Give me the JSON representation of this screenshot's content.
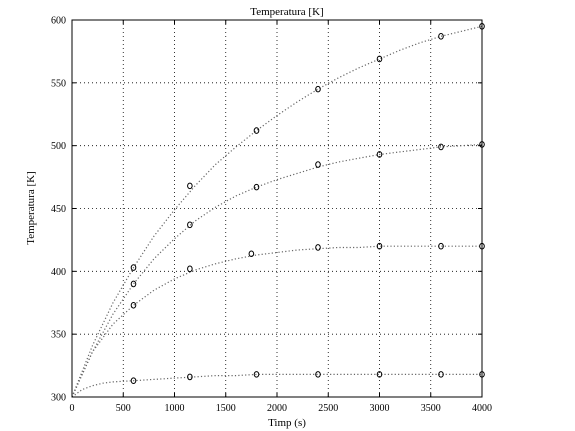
{
  "chart_data": {
    "type": "scatter",
    "title": "Temperatura [K]",
    "xlabel": "Timp (s)",
    "ylabel": "Temperatura [K]",
    "xlim": [
      0,
      4000
    ],
    "ylim": [
      300,
      600
    ],
    "xticks": [
      0,
      500,
      1000,
      1500,
      2000,
      2500,
      3000,
      3500,
      4000
    ],
    "yticks": [
      300,
      350,
      400,
      450,
      500,
      550,
      600
    ],
    "xtick_labels": [
      "0",
      "500",
      "1000",
      "1500",
      "2000",
      "2500",
      "3000",
      "3500",
      "4000"
    ],
    "ytick_labels": [
      "300",
      "350",
      "400",
      "450",
      "500",
      "550",
      "600"
    ],
    "grid": true,
    "series": [
      {
        "marker": "circle",
        "x": [
          600,
          1150,
          1800,
          2400,
          3000,
          3600,
          4000
        ],
        "y": [
          403,
          468,
          512,
          545,
          569,
          587,
          595
        ],
        "fit_x": [
          0,
          200,
          400,
          600,
          800,
          1000,
          1200,
          1400,
          1600,
          1800,
          2000,
          2200,
          2400,
          2600,
          2800,
          3000,
          3200,
          3400,
          3600,
          3800,
          4000
        ],
        "fit_y": [
          300,
          341,
          375,
          403,
          428,
          449,
          468,
          485,
          499,
          512,
          524,
          535,
          545,
          554,
          562,
          569,
          576,
          582,
          587,
          591,
          595
        ]
      },
      {
        "marker": "circle",
        "x": [
          600,
          1150,
          1800,
          2400,
          3000,
          3600,
          4000
        ],
        "y": [
          390,
          437,
          467,
          485,
          493,
          499,
          501
        ],
        "fit_x": [
          0,
          200,
          400,
          600,
          800,
          1000,
          1200,
          1400,
          1600,
          1800,
          2000,
          2200,
          2400,
          2600,
          2800,
          3000,
          3200,
          3400,
          3600,
          3800,
          4000
        ],
        "fit_y": [
          300,
          336,
          366,
          390,
          410,
          426,
          440,
          451,
          460,
          467,
          473,
          478,
          483,
          487,
          490,
          493,
          495,
          497,
          499,
          500,
          501
        ]
      },
      {
        "marker": "circle",
        "x": [
          600,
          1150,
          1750,
          2400,
          3000,
          3600,
          4000
        ],
        "y": [
          373,
          402,
          414,
          419,
          420,
          420,
          420
        ],
        "fit_x": [
          0,
          200,
          400,
          600,
          800,
          1000,
          1200,
          1400,
          1600,
          1800,
          2000,
          2200,
          2400,
          2600,
          2800,
          3000,
          3200,
          3400,
          3600,
          3800,
          4000
        ],
        "fit_y": [
          300,
          336,
          358,
          373,
          385,
          394,
          401,
          406,
          410,
          413,
          415,
          417,
          418,
          419,
          419,
          420,
          420,
          420,
          420,
          420,
          420
        ]
      },
      {
        "marker": "circle",
        "x": [
          600,
          1150,
          1800,
          2400,
          3000,
          3600,
          4000
        ],
        "y": [
          313,
          316,
          318,
          318,
          318,
          318,
          318
        ],
        "fit_x": [
          0,
          100,
          200,
          300,
          400,
          600,
          800,
          1000,
          1200,
          1400,
          1600,
          1800,
          2000,
          2400,
          2800,
          3200,
          3600,
          4000
        ],
        "fit_y": [
          300,
          306,
          309,
          311,
          312,
          313,
          314,
          315,
          316,
          317,
          317,
          318,
          318,
          318,
          318,
          318,
          318,
          318
        ]
      }
    ]
  }
}
